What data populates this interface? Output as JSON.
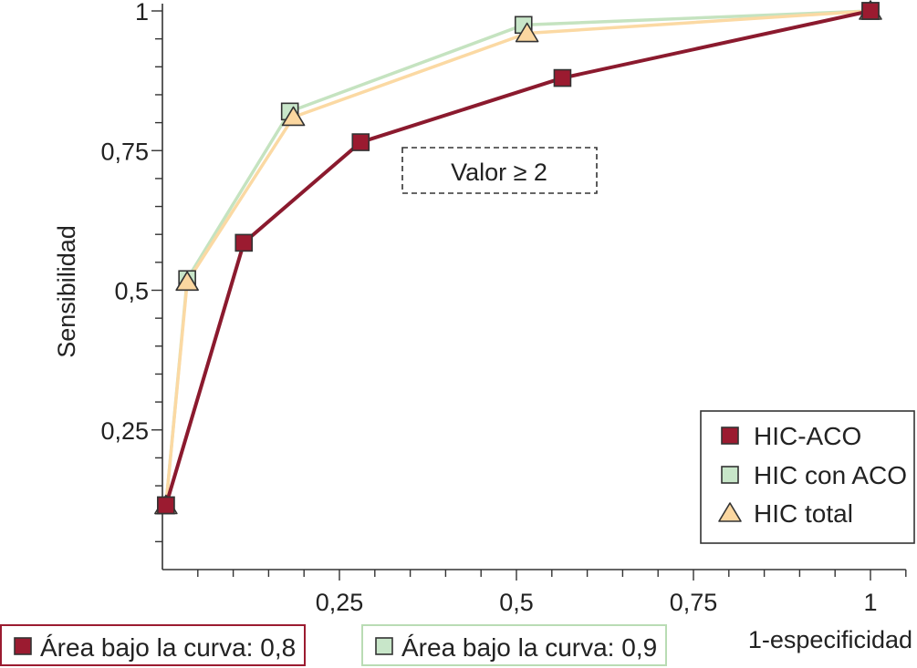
{
  "chart_data": {
    "type": "line",
    "title": "",
    "xlabel": "1-especificidad",
    "ylabel": "Sensibilidad",
    "xlim": [
      0,
      1.05
    ],
    "ylim": [
      0,
      1
    ],
    "x_ticks": [
      0.25,
      0.5,
      0.75,
      1
    ],
    "x_tick_labels": [
      "0,25",
      "0,5",
      "0,75",
      "1"
    ],
    "y_ticks": [
      0.25,
      0.5,
      0.75,
      1
    ],
    "y_tick_labels": [
      "0,25",
      "0,5",
      "0,75",
      "1"
    ],
    "grid": false,
    "legend_position": "bottom-right",
    "annotation": "Valor ≥ 2",
    "series": [
      {
        "name": "HIC-ACO",
        "marker": "square",
        "line_color": "#8b1a2e",
        "marker_fill": "#9b1b30",
        "x": [
          0.005,
          0.115,
          0.28,
          0.565,
          1.0
        ],
        "y": [
          0.115,
          0.585,
          0.765,
          0.88,
          1.0
        ]
      },
      {
        "name": "HIC con ACO",
        "marker": "square",
        "line_color": "#c5e3c0",
        "marker_fill": "#c8e6c9",
        "x": [
          0.005,
          0.035,
          0.18,
          0.51,
          1.0
        ],
        "y": [
          0.115,
          0.52,
          0.82,
          0.975,
          1.0
        ]
      },
      {
        "name": "HIC total",
        "marker": "triangle",
        "line_color": "#fbd9a3",
        "marker_fill": "#fbd7a0",
        "x": [
          0.005,
          0.035,
          0.185,
          0.515,
          1.0
        ],
        "y": [
          0.115,
          0.515,
          0.81,
          0.96,
          1.0
        ]
      }
    ],
    "area_labels": [
      {
        "text": "Área bajo la curva: 0,8",
        "color": "#9b1b30",
        "marker_fill": "#9b1b30",
        "border_color": "#9b1b30"
      },
      {
        "text": "Área bajo la curva: 0,9",
        "color": "#c8e6c9",
        "marker_fill": "#c8e6c9",
        "border_color": "#b9dcb4"
      }
    ]
  }
}
